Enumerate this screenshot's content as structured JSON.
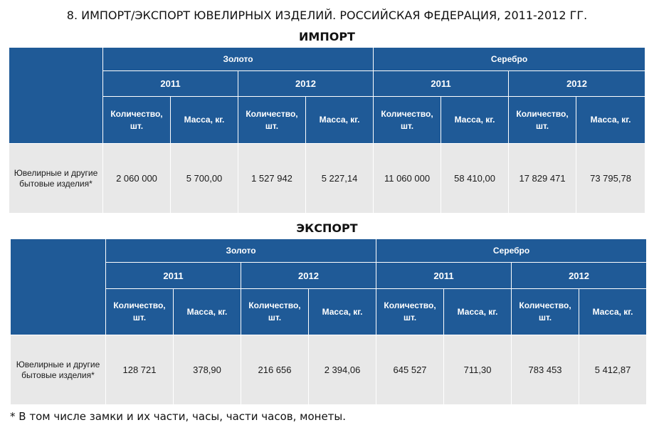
{
  "title": "8. ИМПОРТ/ЭКСПОРТ ЮВЕЛИРНЫХ ИЗДЕЛИЙ. РОССИЙСКАЯ ФЕДЕРАЦИЯ, 2011-2012 ГГ.",
  "colors": {
    "header_bg": "#1f5a97",
    "row_bg": "#e8e8e8"
  },
  "headers": {
    "gold": "Золото",
    "silver": "Серебро",
    "year1": "2011",
    "year2": "2012",
    "qty": "Количество, шт.",
    "mass": "Масса, кг."
  },
  "import": {
    "heading": "ИМПОРТ",
    "row_label": "Ювелирные и другие бытовые изделия*",
    "values": [
      "2 060 000",
      "5 700,00",
      "1 527 942",
      "5 227,14",
      "11 060 000",
      "58 410,00",
      "17 829 471",
      "73 795,78"
    ]
  },
  "export": {
    "heading": "ЭКСПОРТ",
    "row_label": "Ювелирные и другие бытовые изделия*",
    "values": [
      "128 721",
      "378,90",
      "216 656",
      "2 394,06",
      "645 527",
      "711,30",
      "783 453",
      "5 412,87"
    ]
  },
  "footnote": "* В том числе замки и их части, часы, части часов, монеты."
}
